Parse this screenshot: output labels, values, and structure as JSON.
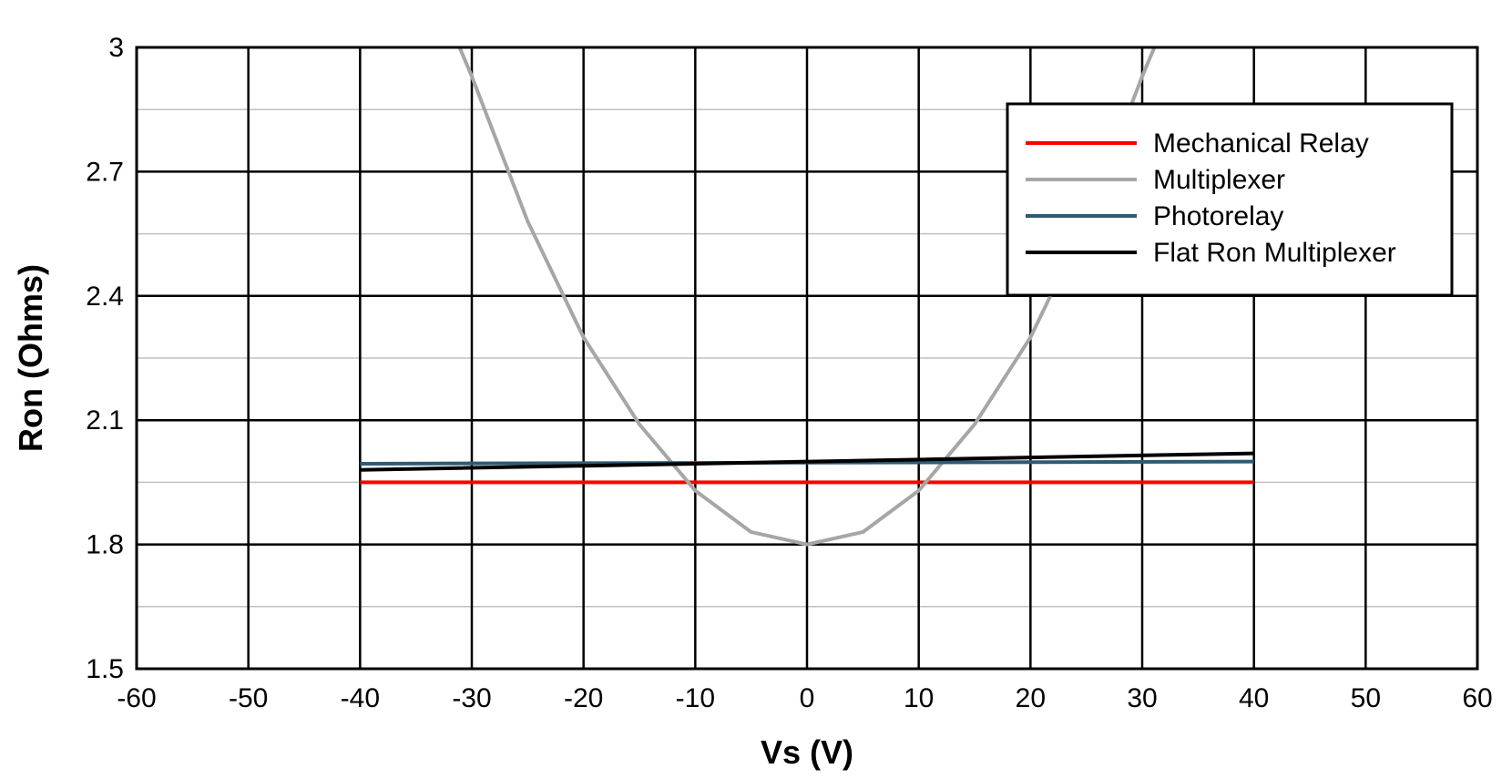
{
  "chart_data": {
    "type": "line",
    "title": "",
    "xlabel": "Vs (V)",
    "ylabel": "Ron (Ohms)",
    "xlim": [
      -60,
      60
    ],
    "ylim": [
      1.5,
      3
    ],
    "x_ticks": [
      -60,
      -50,
      -40,
      -30,
      -20,
      -10,
      0,
      10,
      20,
      30,
      40,
      50,
      60
    ],
    "x_tick_labels": [
      "-60",
      "-50",
      "-40",
      "-30",
      "-20",
      "-10",
      "0",
      "10",
      "20",
      "30",
      "40",
      "50",
      "60"
    ],
    "y_ticks": [
      1.5,
      1.8,
      2.1,
      2.4,
      2.7,
      3
    ],
    "y_tick_labels": [
      "1.5",
      "1.8",
      "2.1",
      "2.4",
      "2.7",
      "3"
    ],
    "y_minor_ticks": [
      1.65,
      1.95,
      2.25,
      2.55,
      2.85
    ],
    "grid": true,
    "legend_position": "top-right",
    "series": [
      {
        "name": "Mechanical Relay",
        "color": "#ff0000",
        "x": [
          -40,
          40
        ],
        "y": [
          1.95,
          1.95
        ]
      },
      {
        "name": "Multiplexer",
        "color": "#a6a6a6",
        "x": [
          -35,
          -30,
          -25,
          -20,
          -15,
          -10,
          -5,
          0,
          5,
          10,
          15,
          20,
          25,
          30,
          35
        ],
        "y": [
          3.25,
          2.93,
          2.58,
          2.3,
          2.09,
          1.93,
          1.83,
          1.8,
          1.83,
          1.93,
          2.09,
          2.3,
          2.58,
          2.93,
          3.25
        ]
      },
      {
        "name": "Photorelay",
        "color": "#2e5a74",
        "x": [
          -40,
          40
        ],
        "y": [
          1.995,
          2.0
        ]
      },
      {
        "name": "Flat Ron Multiplexer",
        "color": "#000000",
        "x": [
          -40,
          0,
          40
        ],
        "y": [
          1.98,
          2.0,
          2.02
        ]
      }
    ]
  }
}
